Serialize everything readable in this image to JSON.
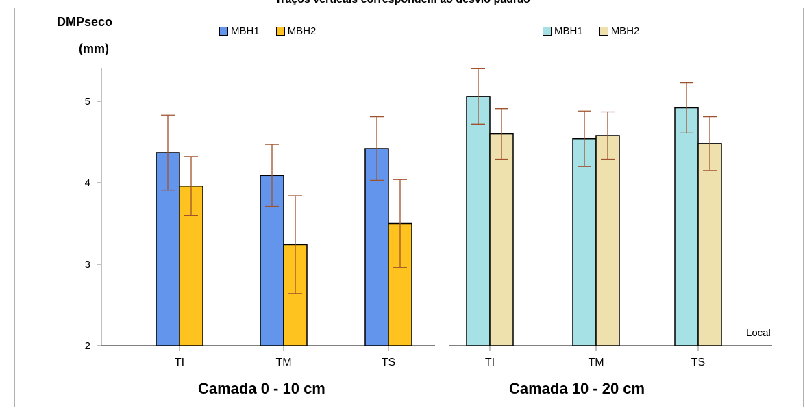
{
  "top_title": "Traços verticais correspondem ao desvio padrão",
  "y_axis": {
    "label_line1": "DMPseco",
    "label_line2": "(mm)"
  },
  "local_label": "Local",
  "colors": {
    "left_mbh1": "#6495ed",
    "left_mbh2": "#ffc31f",
    "right_mbh1": "#a6e1e6",
    "right_mbh2": "#efe1ae",
    "error_bar": "#a0522d",
    "axis": "#808080"
  },
  "legends": [
    {
      "items": [
        {
          "label": "MBH1",
          "color": "#6495ed"
        },
        {
          "label": "MBH2",
          "color": "#ffc31f"
        }
      ]
    },
    {
      "items": [
        {
          "label": "MBH1",
          "color": "#a6e1e6"
        },
        {
          "label": "MBH2",
          "color": "#efe1ae"
        }
      ]
    }
  ],
  "chart_data": [
    {
      "type": "bar",
      "title": "Camada 0 - 10 cm",
      "ylabel": "DMPseco (mm)",
      "categories": [
        "TI",
        "TM",
        "TS"
      ],
      "ylim": [
        2,
        5.4
      ],
      "yticks": [
        2,
        3,
        4,
        5
      ],
      "series": [
        {
          "name": "MBH1",
          "values": [
            4.37,
            4.09,
            4.42
          ],
          "err": [
            0.46,
            0.38,
            0.39
          ]
        },
        {
          "name": "MBH2",
          "values": [
            3.96,
            3.24,
            3.5
          ],
          "err": [
            0.36,
            0.6,
            0.54
          ]
        }
      ]
    },
    {
      "type": "bar",
      "title": "Camada 10 - 20 cm",
      "ylabel": "DMPseco (mm)",
      "categories": [
        "TI",
        "TM",
        "TS"
      ],
      "ylim": [
        2,
        5.4
      ],
      "yticks": [
        2,
        3,
        4,
        5
      ],
      "series": [
        {
          "name": "MBH1",
          "values": [
            5.06,
            4.54,
            4.92
          ],
          "err": [
            0.34,
            0.34,
            0.31
          ]
        },
        {
          "name": "MBH2",
          "values": [
            4.6,
            4.58,
            4.48
          ],
          "err": [
            0.31,
            0.29,
            0.33
          ]
        }
      ]
    }
  ]
}
